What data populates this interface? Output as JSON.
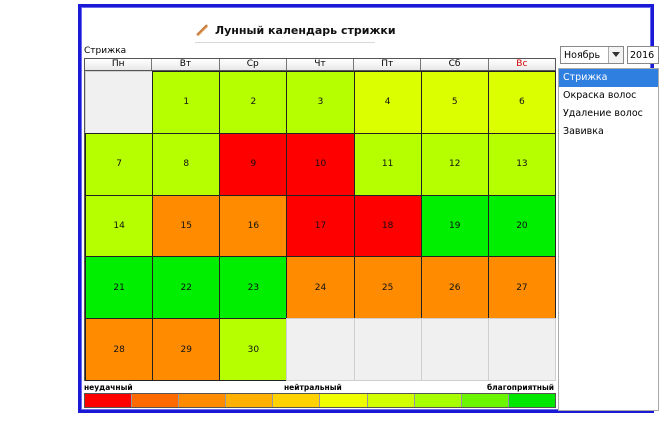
{
  "app": {
    "title": "Лунный календарь стрижки"
  },
  "section_label": "Стрижка",
  "weekdays": [
    "Пн",
    "Вт",
    "Ср",
    "Чт",
    "Пт",
    "Сб",
    "Вс"
  ],
  "colors": {
    "neutral": "#b6ff00",
    "light_neutral": "#dcff00",
    "good": "#00ee00",
    "bad": "#ff0000",
    "poor": "#ff8c00",
    "empty": "#f0f0f0",
    "selection": "#2f7fe0",
    "frame_border": "#1a1ad6"
  },
  "calendar": {
    "month_label": "Ноябрь",
    "year": "2016",
    "leading_empty": 1,
    "days": [
      {
        "day": "1",
        "rating": "neutral"
      },
      {
        "day": "2",
        "rating": "neutral"
      },
      {
        "day": "3",
        "rating": "neutral"
      },
      {
        "day": "4",
        "rating": "light_neutral"
      },
      {
        "day": "5",
        "rating": "light_neutral"
      },
      {
        "day": "6",
        "rating": "light_neutral"
      },
      {
        "day": "7",
        "rating": "neutral"
      },
      {
        "day": "8",
        "rating": "neutral"
      },
      {
        "day": "9",
        "rating": "bad"
      },
      {
        "day": "10",
        "rating": "bad"
      },
      {
        "day": "11",
        "rating": "neutral"
      },
      {
        "day": "12",
        "rating": "neutral"
      },
      {
        "day": "13",
        "rating": "neutral"
      },
      {
        "day": "14",
        "rating": "neutral"
      },
      {
        "day": "15",
        "rating": "poor"
      },
      {
        "day": "16",
        "rating": "poor"
      },
      {
        "day": "17",
        "rating": "bad"
      },
      {
        "day": "18",
        "rating": "bad"
      },
      {
        "day": "19",
        "rating": "good"
      },
      {
        "day": "20",
        "rating": "good"
      },
      {
        "day": "21",
        "rating": "good"
      },
      {
        "day": "22",
        "rating": "good"
      },
      {
        "day": "23",
        "rating": "good"
      },
      {
        "day": "24",
        "rating": "poor"
      },
      {
        "day": "25",
        "rating": "poor"
      },
      {
        "day": "26",
        "rating": "poor"
      },
      {
        "day": "27",
        "rating": "poor"
      },
      {
        "day": "28",
        "rating": "poor"
      },
      {
        "day": "29",
        "rating": "poor"
      },
      {
        "day": "30",
        "rating": "neutral"
      }
    ]
  },
  "legend": {
    "labels": {
      "bad": "неудачный",
      "neutral": "нейтральный",
      "good": "благоприятный"
    },
    "gradient": [
      "#ff0000",
      "#ff6a00",
      "#ff8c00",
      "#ffb000",
      "#ffd200",
      "#f0ff00",
      "#d2ff00",
      "#a8ff00",
      "#6cf500",
      "#00e800"
    ]
  },
  "services": [
    {
      "label": "Стрижка",
      "selected": true
    },
    {
      "label": "Окраска волос",
      "selected": false
    },
    {
      "label": "Удаление волос",
      "selected": false
    },
    {
      "label": "Завивка",
      "selected": false
    }
  ],
  "icons": {
    "title": "scissors-icon",
    "dropdown": "chevron-down-icon"
  }
}
